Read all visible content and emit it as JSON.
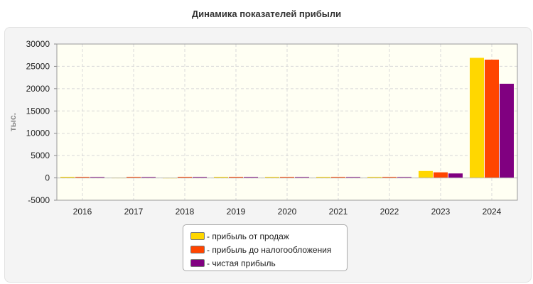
{
  "chart_data": {
    "type": "bar",
    "title": "Динамика показателей прибыли",
    "ylabel": "тыс.",
    "xlabel": "",
    "ylim": [
      -5000,
      30000
    ],
    "yticks": [
      -5000,
      0,
      5000,
      10000,
      15000,
      20000,
      25000,
      30000
    ],
    "grid": true,
    "legend_position": "bottom",
    "categories": [
      "2016",
      "2017",
      "2018",
      "2019",
      "2020",
      "2021",
      "2022",
      "2023",
      "2024"
    ],
    "series": [
      {
        "name": "прибыль от продаж",
        "color": "#ffd700",
        "values": [
          250,
          80,
          60,
          240,
          230,
          230,
          230,
          1550,
          26900
        ]
      },
      {
        "name": "прибыль до налогообложения",
        "color": "#ff4500",
        "values": [
          230,
          230,
          240,
          240,
          230,
          230,
          230,
          1250,
          26500
        ]
      },
      {
        "name": "чистая прибыль",
        "color": "#800080",
        "values": [
          200,
          200,
          210,
          210,
          200,
          200,
          200,
          1000,
          21100
        ]
      }
    ]
  }
}
